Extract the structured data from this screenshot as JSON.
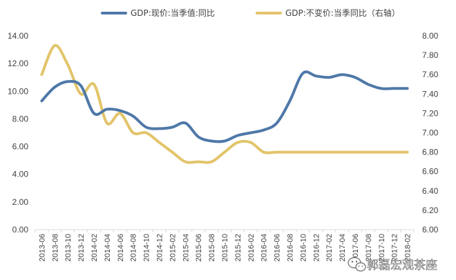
{
  "chart_data": {
    "type": "line",
    "title": "",
    "xlabel": "",
    "ylabel": "",
    "y2label": "",
    "x": [
      "2013-06",
      "2013-08",
      "2013-10",
      "2013-12",
      "2014-02",
      "2014-04",
      "2014-06",
      "2014-08",
      "2014-10",
      "2014-12",
      "2015-02",
      "2015-04",
      "2015-06",
      "2015-08",
      "2015-10",
      "2015-12",
      "2016-02",
      "2016-04",
      "2016-06",
      "2016-08",
      "2016-10",
      "2016-12",
      "2017-02",
      "2017-04",
      "2017-06",
      "2017-08",
      "2017-10",
      "2017-12",
      "2018-02"
    ],
    "ylim": [
      0,
      14
    ],
    "yticks": [
      "0.00",
      "2.00",
      "4.00",
      "6.00",
      "8.00",
      "10.00",
      "12.00",
      "14.00"
    ],
    "y2lim": [
      6.0,
      8.0
    ],
    "y2ticks": [
      "6.00",
      "6.20",
      "6.40",
      "6.60",
      "6.80",
      "7.00",
      "7.20",
      "7.40",
      "7.60",
      "7.80",
      "8.00"
    ],
    "grid": false,
    "legend_position": "top",
    "series": [
      {
        "name": "GDP:现价:当季值:同比",
        "axis": "left",
        "color": "#4E78A8",
        "values": [
          9.3,
          10.3,
          10.7,
          10.4,
          8.4,
          8.7,
          8.6,
          8.2,
          7.4,
          7.3,
          7.4,
          7.7,
          6.7,
          6.4,
          6.4,
          6.8,
          7.0,
          7.2,
          7.7,
          9.3,
          11.3,
          11.1,
          11.0,
          11.2,
          11.0,
          10.5,
          10.2,
          10.2,
          10.2
        ]
      },
      {
        "name": "GDP:不变价:当季同比（右轴）",
        "axis": "right",
        "color": "#E2C46A",
        "values": [
          7.6,
          7.9,
          7.7,
          7.4,
          7.5,
          7.1,
          7.2,
          7.0,
          7.0,
          6.9,
          6.8,
          6.7,
          6.7,
          6.7,
          6.8,
          6.9,
          6.9,
          6.8,
          6.8,
          6.8,
          6.8,
          6.8,
          6.8,
          6.8,
          6.8,
          6.8,
          6.8,
          6.8,
          6.8
        ]
      }
    ]
  },
  "watermark": {
    "text": "郭磊宏观茶座",
    "icon": "wechat-icon"
  }
}
